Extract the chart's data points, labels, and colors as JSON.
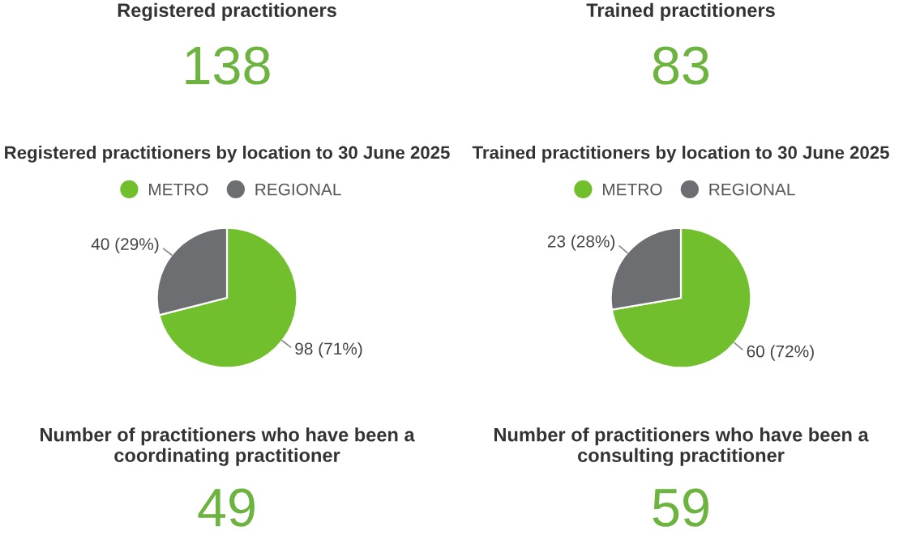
{
  "chart_data": [
    {
      "type": "other",
      "title": "Registered practitioners",
      "annotations": [
        "138"
      ],
      "color": "#6cb33f"
    },
    {
      "type": "other",
      "title": "Trained practitioners",
      "annotations": [
        "83"
      ],
      "color": "#6cb33f"
    },
    {
      "type": "pie",
      "title": "Registered practitioners by location to 30 June 2025",
      "categories": [
        "METRO",
        "REGIONAL"
      ],
      "values": [
        98,
        40
      ],
      "value_labels": [
        "98 (71%)",
        "40 (29%)"
      ],
      "colors": [
        "#72bf2e",
        "#6d6e71"
      ],
      "legend": "top"
    },
    {
      "type": "pie",
      "title": "Trained practitioners by location to 30 June 2025",
      "categories": [
        "METRO",
        "REGIONAL"
      ],
      "values": [
        60,
        23
      ],
      "value_labels": [
        "60 (72%)",
        "23 (28%)"
      ],
      "colors": [
        "#72bf2e",
        "#6d6e71"
      ],
      "legend": "top"
    },
    {
      "type": "other",
      "title": "Number of practitioners who have been a coordinating practitioner",
      "annotations": [
        "49"
      ],
      "color": "#6cb33f"
    },
    {
      "type": "other",
      "title": "Number of practitioners who have been a consulting practitioner",
      "annotations": [
        "59"
      ],
      "color": "#6cb33f"
    }
  ]
}
